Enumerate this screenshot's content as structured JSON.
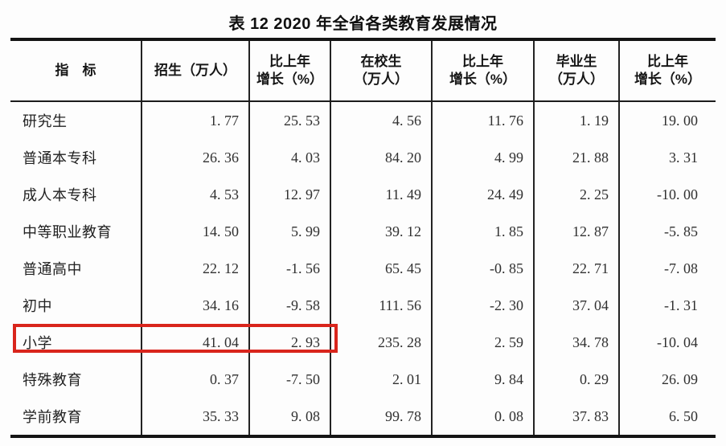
{
  "title": "表 12 2020 年全省各类教育发展情况",
  "table": {
    "columns": [
      {
        "label": "指　标"
      },
      {
        "label": "招生（万人）"
      },
      {
        "label": "比上年\n增长（%）"
      },
      {
        "label": "在校生\n（万人）"
      },
      {
        "label": "比上年\n增长（%）"
      },
      {
        "label": "毕业生\n（万人）"
      },
      {
        "label": "比上年\n增长（%）"
      }
    ],
    "rows": [
      {
        "label": "研究生",
        "values": [
          "1. 77",
          "25. 53",
          "4. 56",
          "11. 76",
          "1. 19",
          "19. 00"
        ]
      },
      {
        "label": "普通本专科",
        "values": [
          "26. 36",
          "4. 03",
          "84. 20",
          "4. 99",
          "21. 88",
          "3. 31"
        ]
      },
      {
        "label": "成人本专科",
        "values": [
          "4. 53",
          "12. 97",
          "11. 49",
          "24. 49",
          "2. 25",
          "-10. 00"
        ]
      },
      {
        "label": "中等职业教育",
        "values": [
          "14. 50",
          "5. 99",
          "39. 12",
          "1. 85",
          "12. 87",
          "-5. 85"
        ]
      },
      {
        "label": "普通高中",
        "values": [
          "22. 12",
          "-1. 56",
          "65. 45",
          "-0. 85",
          "22. 71",
          "-7. 08"
        ]
      },
      {
        "label": "初中",
        "values": [
          "34. 16",
          "-9. 58",
          "111. 56",
          "-2. 30",
          "37. 04",
          "-1. 31"
        ]
      },
      {
        "label": "小学",
        "values": [
          "41. 04",
          "2. 93",
          "235. 28",
          "2. 59",
          "34. 78",
          "-10. 04"
        ]
      },
      {
        "label": "特殊教育",
        "values": [
          "0. 37",
          "-7. 50",
          "2. 01",
          "9. 84",
          "0. 29",
          "26. 09"
        ]
      },
      {
        "label": "学前教育",
        "values": [
          "35. 33",
          "9. 08",
          "99. 78",
          "0. 08",
          "37. 83",
          "6. 50"
        ]
      }
    ]
  },
  "annotation": {
    "type": "red-highlight-box",
    "highlighted_row": "小学",
    "highlighted_values": [
      "41. 04",
      "2. 93"
    ],
    "color": "#d9251c"
  }
}
